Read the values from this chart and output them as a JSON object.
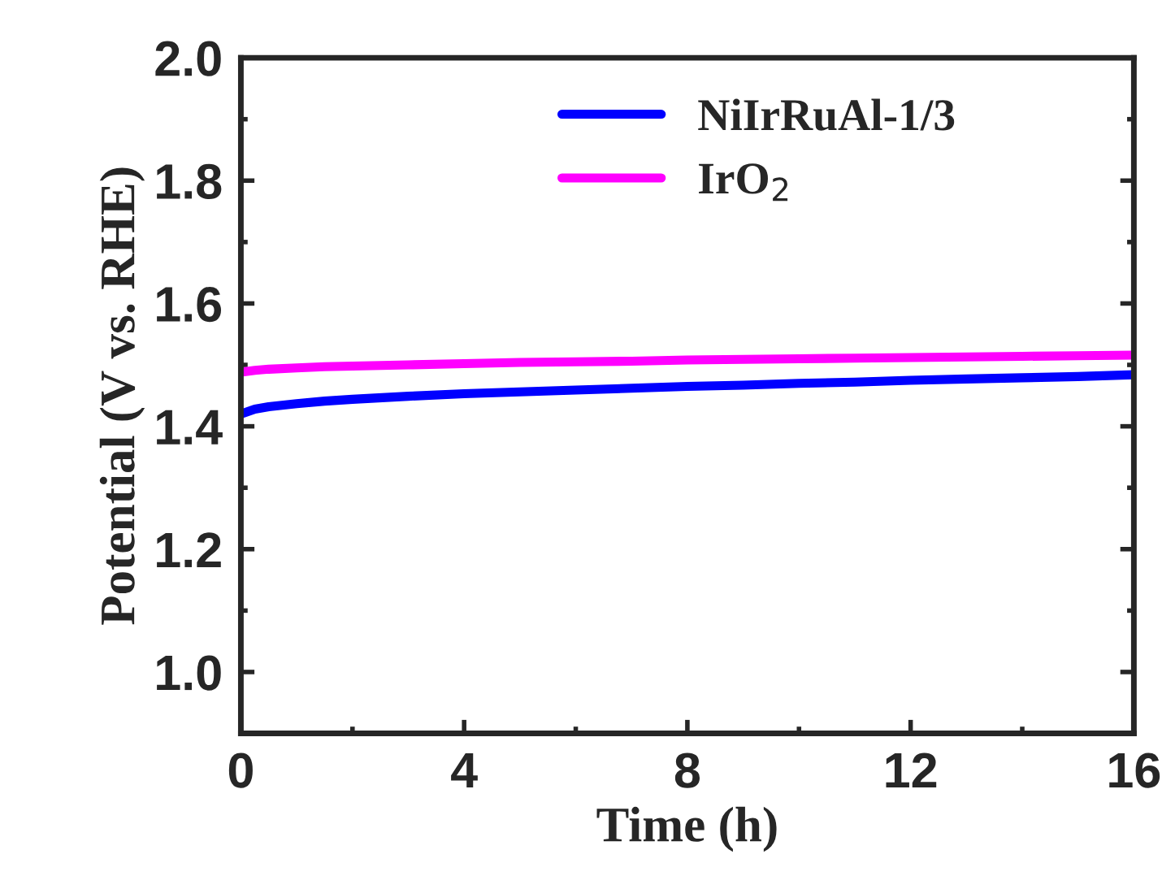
{
  "chart_data": {
    "type": "line",
    "xlabel": "Time (h)",
    "ylabel": "Potential (V vs. RHE)",
    "x": [
      0,
      0.25,
      0.5,
      1,
      1.5,
      2,
      3,
      4,
      5,
      6,
      7,
      8,
      9,
      10,
      11,
      12,
      13,
      14,
      15,
      16
    ],
    "series": [
      {
        "name": "NiIrRuAl-1/3",
        "color": "#0000ff",
        "values": [
          1.42,
          1.428,
          1.432,
          1.437,
          1.441,
          1.444,
          1.449,
          1.453,
          1.456,
          1.459,
          1.462,
          1.465,
          1.467,
          1.47,
          1.472,
          1.475,
          1.477,
          1.479,
          1.481,
          1.484
        ]
      },
      {
        "name": "IrO$_{2}$",
        "color": "#ff00ff",
        "values": [
          1.488,
          1.491,
          1.493,
          1.495,
          1.497,
          1.498,
          1.5,
          1.502,
          1.504,
          1.505,
          1.506,
          1.508,
          1.509,
          1.51,
          1.511,
          1.512,
          1.513,
          1.514,
          1.515,
          1.516
        ]
      }
    ],
    "xlim": [
      0,
      16
    ],
    "ylim": [
      0.9,
      2.0
    ],
    "xticks": [
      0,
      {
        "value": 2,
        "label": null
      },
      4,
      {
        "value": 6,
        "label": null
      },
      8,
      {
        "value": 10,
        "label": null
      },
      12,
      {
        "value": 14,
        "label": null
      },
      16
    ],
    "yticks": [
      {
        "value": 1.0,
        "label": "1.0"
      },
      {
        "value": 1.1,
        "label": null
      },
      1.2,
      {
        "value": 1.3,
        "label": null
      },
      1.4,
      {
        "value": 1.5,
        "label": null
      },
      1.6,
      {
        "value": 1.7,
        "label": null
      },
      1.8,
      {
        "value": 1.9,
        "label": null
      },
      {
        "value": 2.0,
        "label": "2.0"
      }
    ],
    "legend": "top",
    "grid": false,
    "line_style": "solid",
    "marker": "none"
  }
}
